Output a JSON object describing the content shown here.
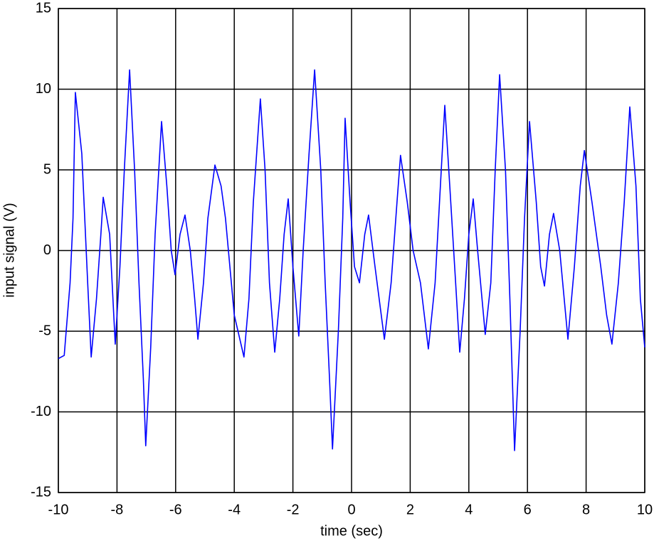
{
  "chart_data": {
    "type": "line",
    "xlabel": "time (sec)",
    "ylabel": "input signal (V)",
    "x": [
      -10,
      -9.8,
      -9.6,
      -9.5,
      -9.42,
      -9.2,
      -9.0,
      -8.88,
      -8.7,
      -8.55,
      -8.47,
      -8.25,
      -8.06,
      -7.9,
      -7.75,
      -7.57,
      -7.4,
      -7.25,
      -7.1,
      -7.02,
      -6.85,
      -6.7,
      -6.48,
      -6.3,
      -6.15,
      -6.02,
      -5.85,
      -5.68,
      -5.5,
      -5.35,
      -5.24,
      -5.05,
      -4.9,
      -4.66,
      -4.45,
      -4.3,
      -4.15,
      -4.0,
      -3.67,
      -3.5,
      -3.35,
      -3.11,
      -2.95,
      -2.8,
      -2.62,
      -2.45,
      -2.3,
      -2.16,
      -2.0,
      -1.8,
      -1.65,
      -1.45,
      -1.26,
      -1.05,
      -0.9,
      -0.75,
      -0.65,
      -0.45,
      -0.3,
      -0.22,
      -0.05,
      0.1,
      0.27,
      0.45,
      0.58,
      0.8,
      1.12,
      1.35,
      1.55,
      1.67,
      1.9,
      2.1,
      2.35,
      2.62,
      2.85,
      3.0,
      3.18,
      3.35,
      3.55,
      3.69,
      3.85,
      4.0,
      4.15,
      4.3,
      4.56,
      4.75,
      4.9,
      5.05,
      5.25,
      5.4,
      5.56,
      5.75,
      5.9,
      6.07,
      6.3,
      6.45,
      6.58,
      6.75,
      6.89,
      7.1,
      7.38,
      7.6,
      7.8,
      7.94,
      8.2,
      8.5,
      8.7,
      8.88,
      9.1,
      9.3,
      9.49,
      9.7,
      9.85,
      10
    ],
    "series": [
      {
        "color": "#0000ff",
        "values": [
          -6.7,
          -6.5,
          -2,
          2,
          9.8,
          6,
          -2,
          -6.6,
          -3,
          1,
          3.3,
          1,
          -5.8,
          -1,
          5,
          11.2,
          5,
          -2,
          -8,
          -12.1,
          -6,
          1,
          8,
          4,
          0,
          -1.5,
          1,
          2.2,
          0,
          -3,
          -5.5,
          -2,
          2,
          5.3,
          4,
          2,
          -1,
          -4,
          -6.6,
          -3,
          3,
          9.4,
          5,
          -2,
          -6.3,
          -3,
          1,
          3.2,
          -1,
          -5.3,
          0,
          6,
          11.2,
          5,
          -2,
          -8,
          -12.3,
          -5,
          2,
          8.2,
          3,
          -1,
          -2,
          1,
          2.2,
          -1,
          -5.5,
          -2,
          3,
          5.9,
          3,
          0,
          -2,
          -6.1,
          -2,
          3,
          9,
          4,
          -2,
          -6.3,
          -3,
          1,
          3.2,
          0,
          -5.2,
          -2,
          5,
          10.9,
          5,
          -3,
          -12.4,
          -5,
          2,
          8,
          3,
          -1,
          -2.2,
          1,
          2.3,
          0,
          -5.5,
          -1,
          4,
          6.2,
          3,
          -1,
          -4,
          -5.8,
          -2,
          3,
          8.9,
          4,
          -3,
          -6
        ]
      }
    ],
    "xlim": [
      -10,
      10
    ],
    "xticks": [
      -10,
      -8,
      -6,
      -4,
      -2,
      0,
      2,
      4,
      6,
      8,
      10
    ],
    "ylim": [
      -15,
      15
    ],
    "yticks": [
      -15,
      -10,
      -5,
      0,
      5,
      10,
      15
    ],
    "grid": true
  }
}
